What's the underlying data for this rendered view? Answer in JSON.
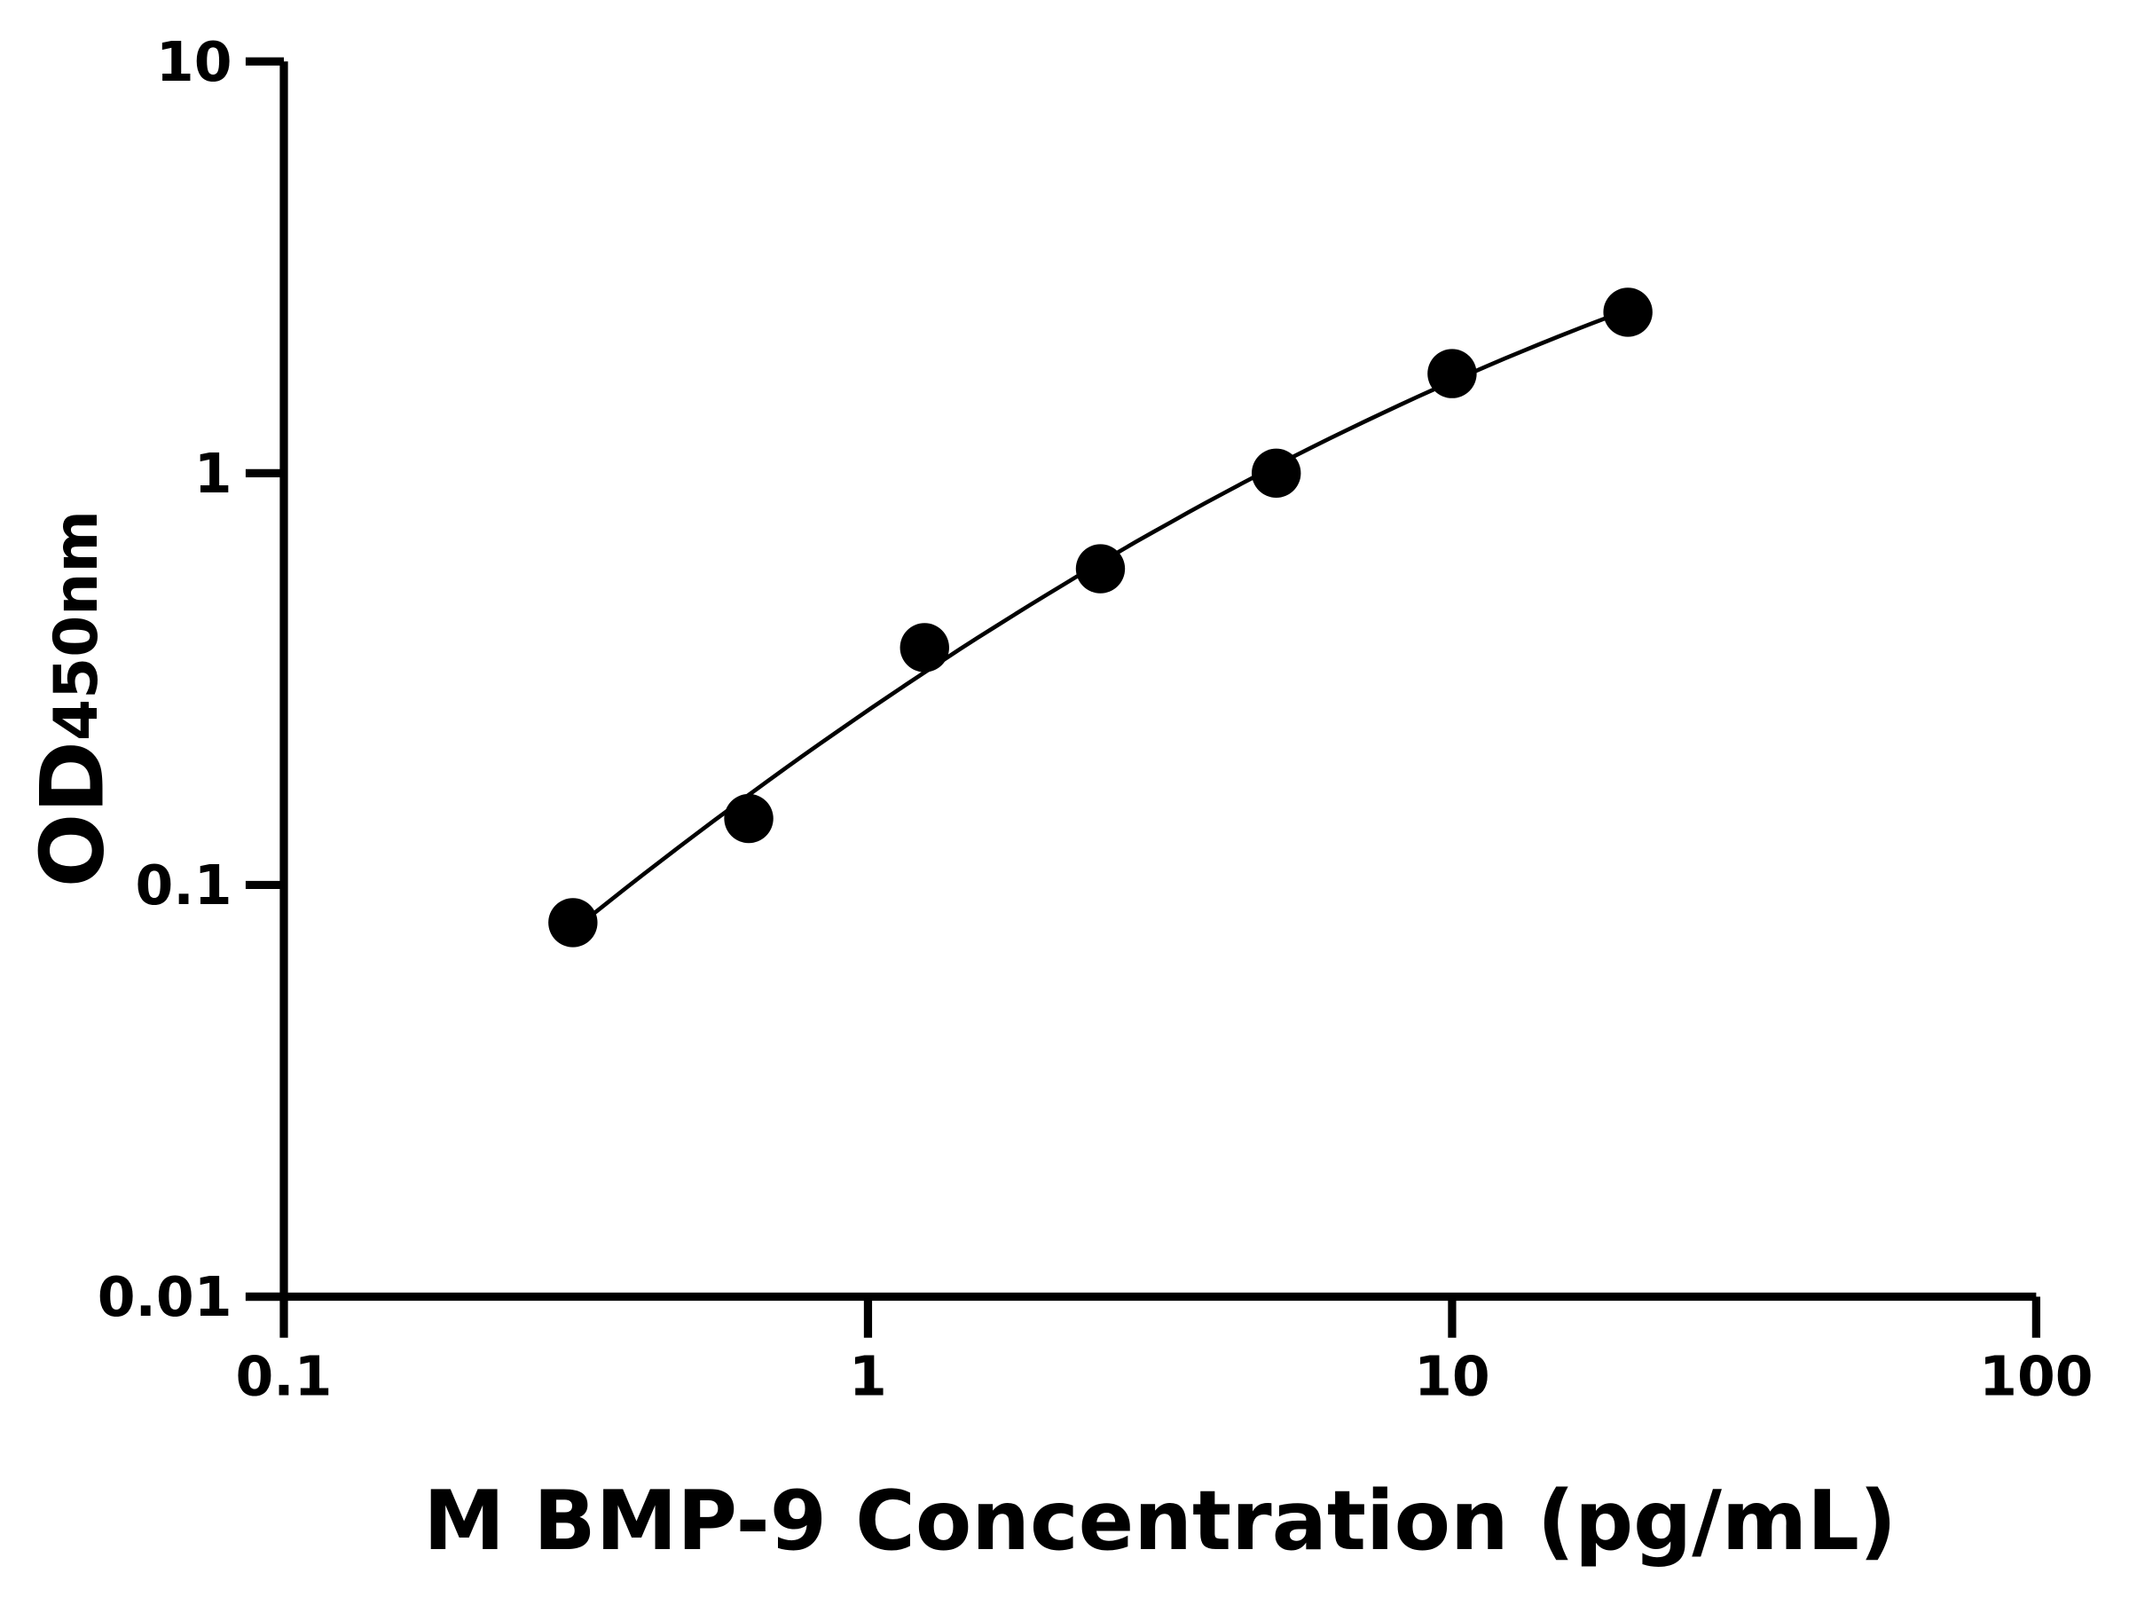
{
  "chart_data": {
    "type": "scatter",
    "title": "",
    "xlabel": "M BMP-9 Concentration (pg/mL)",
    "ylabel_main": "OD",
    "ylabel_sub": "450nm",
    "x_scale": "log",
    "y_scale": "log",
    "xlim": [
      0.1,
      100
    ],
    "ylim": [
      0.01,
      10
    ],
    "x_ticks": [
      0.1,
      1,
      10,
      100
    ],
    "x_tick_labels": [
      "0.1",
      "1",
      "10",
      "100"
    ],
    "y_ticks": [
      0.01,
      0.1,
      1,
      10
    ],
    "y_tick_labels": [
      "0.01",
      "0.1",
      "1",
      "10"
    ],
    "grid": false,
    "legend": "none",
    "fit_curve": true,
    "colors": {
      "points": "#000000",
      "curve": "#000000",
      "axes": "#000000"
    },
    "x": [
      0.3125,
      0.625,
      1.25,
      2.5,
      5,
      10,
      20
    ],
    "y": [
      0.081,
      0.145,
      0.377,
      0.586,
      1.0,
      1.745,
      2.46
    ]
  }
}
